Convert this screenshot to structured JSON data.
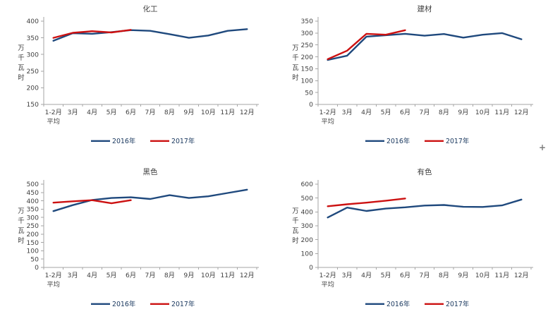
{
  "window": {
    "background": "#FFFFFF"
  },
  "cursor_plus": "+",
  "colors": {
    "series_2016": "#1F497D",
    "series_2017": "#CC1111",
    "axis": "#A6A6A6",
    "text": "#404040"
  },
  "legend": {
    "items": [
      "2016年",
      "2017年"
    ]
  },
  "chart_data": [
    {
      "type": "line",
      "title": "化工",
      "ylabel": "万千瓦时",
      "xlabel": "",
      "ylim": [
        150,
        400
      ],
      "ytick_step": 50,
      "grid": false,
      "legend_position": "bottom",
      "categories": [
        "1-2月",
        "3月",
        "4月",
        "5月",
        "6月",
        "7月",
        "8月",
        "9月",
        "10月",
        "11月",
        "12月"
      ],
      "first_category_line2": "平均",
      "series": [
        {
          "name": "2016年",
          "color": "#1F497D",
          "values": [
            341,
            364,
            362,
            367,
            373,
            371,
            361,
            350,
            357,
            371,
            376
          ]
        },
        {
          "name": "2017年",
          "color": "#CC1111",
          "values": [
            350,
            365,
            370,
            366,
            374
          ]
        }
      ]
    },
    {
      "type": "line",
      "title": "建材",
      "ylabel": "万千瓦时",
      "xlabel": "",
      "ylim": [
        0,
        350
      ],
      "ytick_step": 50,
      "grid": false,
      "legend_position": "bottom",
      "categories": [
        "1-2月",
        "3月",
        "4月",
        "5月",
        "6月",
        "7月",
        "8月",
        "9月",
        "10月",
        "11月",
        "12月"
      ],
      "first_category_line2": "平均",
      "series": [
        {
          "name": "2016年",
          "color": "#1F497D",
          "values": [
            187,
            205,
            285,
            291,
            297,
            289,
            296,
            281,
            293,
            300,
            274
          ]
        },
        {
          "name": "2017年",
          "color": "#CC1111",
          "values": [
            190,
            226,
            297,
            293,
            312
          ]
        }
      ]
    },
    {
      "type": "line",
      "title": "黑色",
      "ylabel": "万千瓦时",
      "xlabel": "",
      "ylim": [
        0,
        500
      ],
      "ytick_step": 50,
      "grid": false,
      "legend_position": "bottom",
      "categories": [
        "1-2月",
        "3月",
        "4月",
        "5月",
        "6月",
        "7月",
        "8月",
        "9月",
        "10月",
        "11月",
        "12月"
      ],
      "first_category_line2": "平均",
      "series": [
        {
          "name": "2016年",
          "color": "#1F497D",
          "values": [
            338,
            374,
            405,
            417,
            421,
            411,
            434,
            417,
            427,
            447,
            467
          ]
        },
        {
          "name": "2017年",
          "color": "#CC1111",
          "values": [
            389,
            397,
            404,
            385,
            404
          ]
        }
      ]
    },
    {
      "type": "line",
      "title": "有色",
      "ylabel": "万千瓦时",
      "xlabel": "",
      "ylim": [
        0,
        600
      ],
      "ytick_step": 100,
      "grid": false,
      "legend_position": "bottom",
      "categories": [
        "1-2月",
        "3月",
        "4月",
        "5月",
        "6月",
        "7月",
        "8月",
        "9月",
        "10月",
        "11月",
        "12月"
      ],
      "first_category_line2": "平均",
      "series": [
        {
          "name": "2016年",
          "color": "#1F497D",
          "values": [
            360,
            431,
            407,
            424,
            433,
            446,
            450,
            437,
            436,
            447,
            489
          ]
        },
        {
          "name": "2017年",
          "color": "#CC1111",
          "values": [
            441,
            455,
            467,
            481,
            497
          ]
        }
      ]
    }
  ]
}
